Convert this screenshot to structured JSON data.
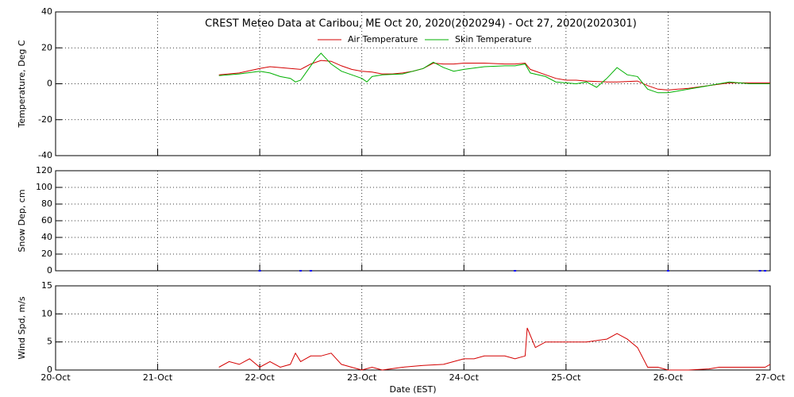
{
  "chart_data": [
    {
      "type": "line",
      "title": "CREST Meteo Data at Caribou, ME   Oct 20, 2020(2020294) - Oct 27, 2020(2020301)",
      "y_label": "Temperature, Deg C",
      "ylim": [
        -40,
        40
      ],
      "yticks": [
        -40,
        -20,
        0,
        20,
        40
      ],
      "grid": true,
      "legend": "top",
      "series": [
        {
          "name": "Air Temperature",
          "color": "#d40000",
          "x": [
            1.6,
            1.8,
            2.0,
            2.1,
            2.2,
            2.3,
            2.4,
            2.5,
            2.6,
            2.7,
            2.8,
            2.9,
            3.0,
            3.1,
            3.2,
            3.3,
            3.4,
            3.5,
            3.6,
            3.7,
            3.8,
            3.9,
            4.0,
            4.2,
            4.4,
            4.5,
            4.6,
            4.65,
            4.8,
            4.9,
            5.0,
            5.1,
            5.2,
            5.4,
            5.5,
            5.7,
            5.8,
            5.9,
            6.0,
            6.1,
            6.2,
            6.4,
            6.6,
            6.8,
            7.0
          ],
          "values": [
            5,
            6,
            8.5,
            9.5,
            9,
            8.5,
            8,
            11,
            13,
            12.5,
            10,
            8,
            7,
            6.5,
            5.5,
            5.5,
            6,
            7,
            8.5,
            11.5,
            11,
            11,
            11.5,
            11.5,
            11,
            11,
            11.5,
            8,
            5,
            3,
            2,
            2,
            1.5,
            1,
            1,
            1.5,
            -1,
            -3,
            -3.5,
            -3,
            -2.5,
            -1,
            0.5,
            0.5,
            0.5
          ]
        },
        {
          "name": "Skin Temperature",
          "color": "#00b000",
          "x": [
            1.6,
            1.8,
            2.0,
            2.1,
            2.2,
            2.3,
            2.35,
            2.4,
            2.5,
            2.55,
            2.6,
            2.65,
            2.7,
            2.8,
            2.9,
            3.0,
            3.05,
            3.1,
            3.2,
            3.4,
            3.6,
            3.7,
            3.8,
            3.9,
            4.0,
            4.2,
            4.4,
            4.5,
            4.6,
            4.65,
            4.8,
            4.9,
            5.0,
            5.1,
            5.2,
            5.3,
            5.4,
            5.5,
            5.6,
            5.7,
            5.8,
            5.9,
            6.0,
            6.1,
            6.2,
            6.4,
            6.6,
            6.8,
            7.0
          ],
          "values": [
            4.5,
            5.5,
            7,
            6,
            4,
            3,
            1,
            2,
            10,
            14,
            17,
            14,
            11,
            7,
            5,
            3,
            1,
            4,
            5,
            5.5,
            8.5,
            12,
            9,
            7,
            8,
            9.5,
            10,
            10,
            11,
            6,
            4,
            1,
            0.5,
            0,
            1,
            -2,
            3,
            9,
            5,
            4,
            -3,
            -5,
            -5,
            -4,
            -3,
            -1,
            1,
            0,
            0
          ]
        }
      ]
    },
    {
      "type": "scatter",
      "y_label": "Snow Dep, cm",
      "ylim": [
        0,
        120
      ],
      "yticks": [
        0,
        20,
        40,
        60,
        80,
        100,
        120
      ],
      "grid": true,
      "series": [
        {
          "name": "Snow Depth",
          "color": "#0000ff",
          "x": [
            2.0,
            2.4,
            2.5,
            4.5,
            6.0,
            6.9,
            6.95
          ],
          "values": [
            0,
            0,
            0,
            0,
            0,
            0,
            0
          ]
        }
      ]
    },
    {
      "type": "line",
      "y_label": "Wind Spd, m/s",
      "x_label": "Date (EST)",
      "ylim": [
        0,
        15
      ],
      "yticks": [
        0,
        5,
        10,
        15
      ],
      "grid": true,
      "xlim": [
        0,
        7
      ],
      "xticks": [
        {
          "value": 0,
          "label": "20-Oct"
        },
        {
          "value": 1,
          "label": "21-Oct"
        },
        {
          "value": 2,
          "label": "22-Oct"
        },
        {
          "value": 3,
          "label": "23-Oct"
        },
        {
          "value": 4,
          "label": "24-Oct"
        },
        {
          "value": 5,
          "label": "25-Oct"
        },
        {
          "value": 6,
          "label": "26-Oct"
        },
        {
          "value": 7,
          "label": "27-Oct"
        }
      ],
      "series": [
        {
          "name": "Wind Speed",
          "color": "#d40000",
          "x": [
            1.6,
            1.7,
            1.8,
            1.9,
            2.0,
            2.1,
            2.2,
            2.3,
            2.35,
            2.4,
            2.5,
            2.6,
            2.7,
            2.8,
            2.9,
            3.0,
            3.1,
            3.2,
            3.4,
            3.6,
            3.8,
            3.9,
            4.0,
            4.1,
            4.2,
            4.4,
            4.5,
            4.6,
            4.62,
            4.7,
            4.8,
            5.0,
            5.2,
            5.4,
            5.5,
            5.6,
            5.7,
            5.8,
            5.9,
            6.0,
            6.2,
            6.4,
            6.5,
            6.8,
            6.95,
            7.0
          ],
          "values": [
            0.5,
            1.5,
            1,
            2,
            0.5,
            1.5,
            0.5,
            1,
            3,
            1.5,
            2.5,
            2.5,
            3,
            1,
            0.5,
            0,
            0.5,
            0,
            0.5,
            0.8,
            1,
            1.5,
            2,
            2,
            2.5,
            2.5,
            2,
            2.5,
            7.5,
            4,
            5,
            5,
            5,
            5.5,
            6.5,
            5.5,
            4,
            0.5,
            0.5,
            0,
            0,
            0.2,
            0.5,
            0.5,
            0.5,
            1
          ]
        }
      ]
    }
  ]
}
